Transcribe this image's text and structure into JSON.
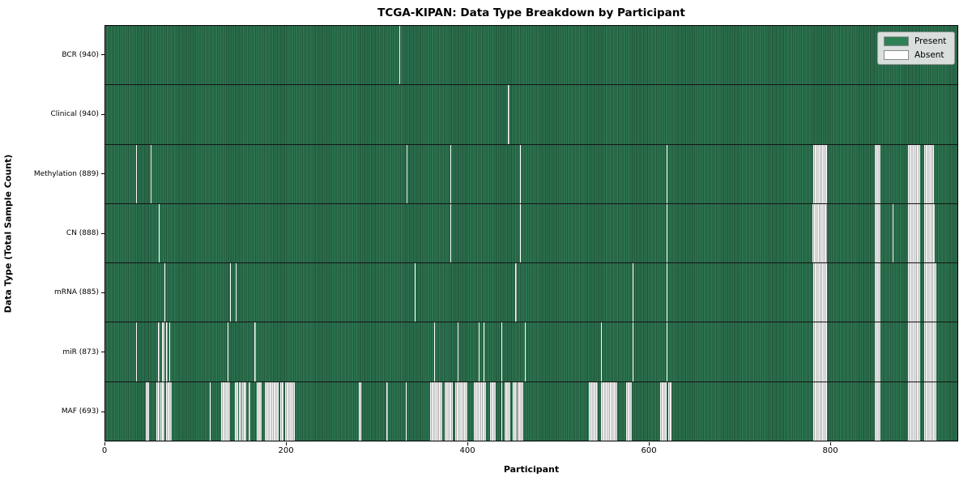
{
  "title": "TCGA-KIPAN: Data Type Breakdown by Participant",
  "chart_data": {
    "type": "heatmap",
    "title": "TCGA-KIPAN: Data Type Breakdown by Participant",
    "xlabel": "Participant",
    "ylabel": "Data Type (Total Sample Count)",
    "x_ticks": [
      0,
      200,
      400,
      600,
      800
    ],
    "x_range": [
      0,
      941
    ],
    "n_participants": 941,
    "grid": false,
    "legend": {
      "position": "upper right",
      "entries": [
        {
          "label": "Present",
          "color": "#2e8057"
        },
        {
          "label": "Absent",
          "color": "#ffffff"
        }
      ]
    },
    "colors": {
      "present_light": "#2f7b55",
      "present_dark": "#20563a",
      "absent_light": "#ffffff",
      "absent_dark": "#a8a8a8",
      "row_divider": "#141414"
    },
    "rows": [
      {
        "label": "BCR (940)",
        "data_type": "BCR",
        "present_count": 940,
        "absent_count": 1,
        "absent_ranges": [
          [
            325,
            325
          ]
        ]
      },
      {
        "label": "Clinical (940)",
        "data_type": "Clinical",
        "present_count": 940,
        "absent_count": 1,
        "absent_ranges": [
          [
            445,
            445
          ]
        ]
      },
      {
        "label": "Methylation (889)",
        "data_type": "Methylation",
        "present_count": 889,
        "absent_count": 52,
        "absent_ranges": [
          [
            34,
            34
          ],
          [
            50,
            50
          ],
          [
            333,
            333
          ],
          [
            381,
            381
          ],
          [
            458,
            458
          ],
          [
            620,
            620
          ],
          [
            782,
            796
          ],
          [
            850,
            855
          ],
          [
            886,
            899
          ],
          [
            904,
            914
          ]
        ]
      },
      {
        "label": "CN (888)",
        "data_type": "CN",
        "present_count": 888,
        "absent_count": 53,
        "absent_ranges": [
          [
            59,
            59
          ],
          [
            381,
            381
          ],
          [
            458,
            458
          ],
          [
            620,
            620
          ],
          [
            869,
            869
          ],
          [
            781,
            796
          ],
          [
            850,
            855
          ],
          [
            886,
            899
          ],
          [
            904,
            915
          ]
        ]
      },
      {
        "label": "mRNA (885)",
        "data_type": "mRNA",
        "present_count": 885,
        "absent_count": 56,
        "absent_ranges": [
          [
            65,
            65
          ],
          [
            138,
            138
          ],
          [
            144,
            144
          ],
          [
            342,
            342
          ],
          [
            453,
            453
          ],
          [
            582,
            582
          ],
          [
            620,
            620
          ],
          [
            782,
            796
          ],
          [
            850,
            855
          ],
          [
            886,
            899
          ],
          [
            904,
            917
          ]
        ]
      },
      {
        "label": "miR (873)",
        "data_type": "miR",
        "present_count": 873,
        "absent_count": 68,
        "absent_ranges": [
          [
            34,
            34
          ],
          [
            58,
            59
          ],
          [
            63,
            64
          ],
          [
            67,
            68
          ],
          [
            71,
            71
          ],
          [
            135,
            135
          ],
          [
            165,
            165
          ],
          [
            363,
            363
          ],
          [
            389,
            389
          ],
          [
            412,
            412
          ],
          [
            418,
            418
          ],
          [
            437,
            437
          ],
          [
            463,
            463
          ],
          [
            547,
            547
          ],
          [
            582,
            582
          ],
          [
            620,
            620
          ],
          [
            782,
            796
          ],
          [
            850,
            855
          ],
          [
            886,
            899
          ],
          [
            904,
            917
          ]
        ]
      },
      {
        "label": "MAF (693)",
        "data_type": "MAF",
        "present_count": 693,
        "absent_count": 248,
        "absent_ranges": [
          [
            45,
            47
          ],
          [
            56,
            59
          ],
          [
            61,
            64
          ],
          [
            67,
            72
          ],
          [
            115,
            115
          ],
          [
            128,
            137
          ],
          [
            143,
            146
          ],
          [
            148,
            149
          ],
          [
            151,
            155
          ],
          [
            158,
            159
          ],
          [
            167,
            172
          ],
          [
            176,
            190
          ],
          [
            193,
            196
          ],
          [
            199,
            208
          ],
          [
            280,
            282
          ],
          [
            310,
            311
          ],
          [
            332,
            332
          ],
          [
            359,
            371
          ],
          [
            375,
            383
          ],
          [
            386,
            399
          ],
          [
            407,
            419
          ],
          [
            425,
            430
          ],
          [
            437,
            437
          ],
          [
            441,
            446
          ],
          [
            450,
            453
          ],
          [
            455,
            461
          ],
          [
            534,
            543
          ],
          [
            547,
            564
          ],
          [
            575,
            580
          ],
          [
            613,
            619
          ],
          [
            622,
            624
          ],
          [
            782,
            796
          ],
          [
            850,
            855
          ],
          [
            886,
            899
          ],
          [
            904,
            917
          ]
        ]
      }
    ]
  }
}
